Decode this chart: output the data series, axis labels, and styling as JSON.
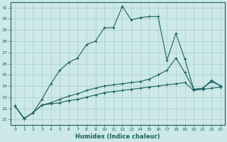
{
  "xlabel": "Humidex (Indice chaleur)",
  "bg_color": "#cce8e8",
  "grid_color": "#aacccc",
  "line_color": "#1a6060",
  "xlim": [
    -0.5,
    23.5
  ],
  "ylim": [
    20.5,
    31.5
  ],
  "yticks": [
    21,
    22,
    23,
    24,
    25,
    26,
    27,
    28,
    29,
    30,
    31
  ],
  "xticks": [
    0,
    1,
    2,
    3,
    4,
    5,
    6,
    7,
    8,
    9,
    10,
    11,
    12,
    13,
    14,
    15,
    16,
    17,
    18,
    19,
    20,
    21,
    22,
    23
  ],
  "line1_x": [
    0,
    1,
    2,
    3,
    4,
    5,
    6,
    7,
    8,
    9,
    10,
    11,
    12,
    13,
    14,
    15,
    16,
    17,
    18,
    19,
    20,
    21,
    22,
    23
  ],
  "line1_y": [
    22.2,
    21.1,
    21.6,
    22.8,
    24.2,
    25.4,
    26.1,
    26.5,
    27.7,
    28.0,
    29.2,
    29.2,
    31.1,
    29.9,
    30.1,
    30.2,
    30.2,
    26.3,
    28.7,
    26.4,
    23.7,
    23.8,
    24.5,
    24.0
  ],
  "line2_x": [
    0,
    1,
    2,
    3,
    4,
    5,
    6,
    7,
    8,
    9,
    10,
    11,
    12,
    13,
    14,
    15,
    16,
    17,
    18,
    19,
    20,
    21,
    22,
    23
  ],
  "line2_y": [
    22.2,
    21.1,
    21.6,
    22.3,
    22.5,
    22.8,
    23.1,
    23.3,
    23.6,
    23.8,
    24.0,
    24.1,
    24.2,
    24.3,
    24.4,
    24.6,
    25.0,
    25.4,
    26.5,
    25.2,
    23.7,
    23.8,
    24.4,
    24.0
  ],
  "line3_x": [
    0,
    1,
    2,
    3,
    4,
    5,
    6,
    7,
    8,
    9,
    10,
    11,
    12,
    13,
    14,
    15,
    16,
    17,
    18,
    19,
    20,
    21,
    22,
    23
  ],
  "line3_y": [
    22.2,
    21.1,
    21.6,
    22.3,
    22.4,
    22.5,
    22.7,
    22.8,
    23.0,
    23.2,
    23.4,
    23.5,
    23.6,
    23.7,
    23.8,
    23.9,
    24.0,
    24.1,
    24.2,
    24.3,
    23.6,
    23.7,
    23.8,
    23.9
  ]
}
